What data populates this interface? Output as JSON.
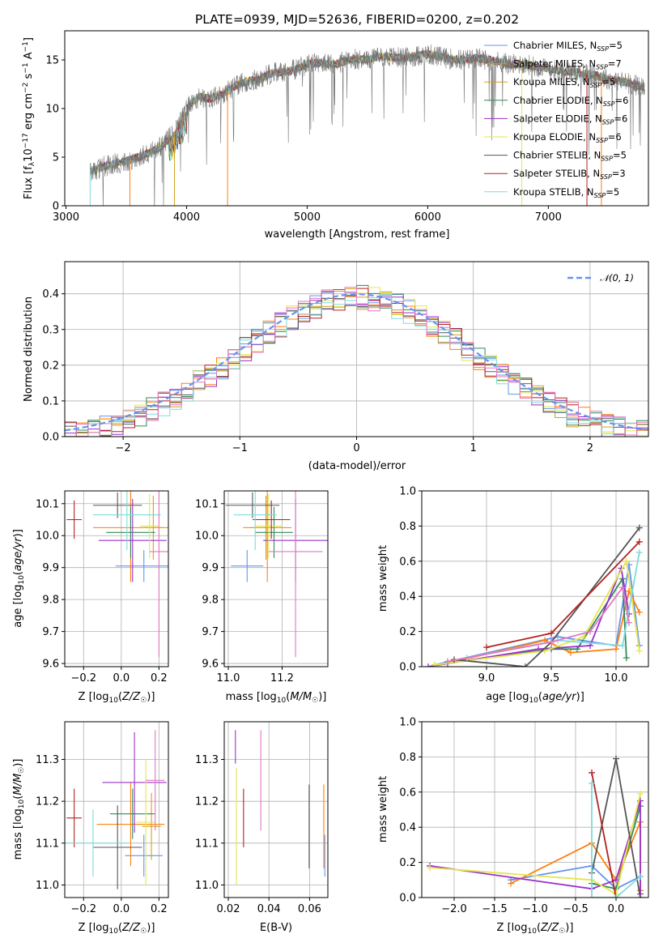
{
  "chart_data": [
    {
      "type": "line",
      "title": "PLATE=0939, MJD=52636, FIBERID=0200, z=0.202",
      "xlabel": "wavelength [Angstrom, rest frame]",
      "ylabel": "Flux [fλ10⁻¹⁷ erg cm⁻² s⁻¹ A⁻¹]",
      "xlim": [
        2990,
        7830
      ],
      "ylim": [
        0,
        18
      ],
      "xticks": [
        "3000",
        "4000",
        "5000",
        "6000",
        "7000"
      ],
      "yticks": [
        "0",
        "5",
        "10",
        "15"
      ],
      "grid": false,
      "legend_position": "top-right",
      "spectrum": {
        "x": [
          3200,
          3300,
          3400,
          3500,
          3600,
          3700,
          3800,
          3900,
          4000,
          4100,
          4200,
          4300,
          4400,
          4500,
          4600,
          4700,
          4800,
          4900,
          5000,
          5100,
          5200,
          5300,
          5400,
          5500,
          5600,
          5700,
          5800,
          5900,
          6000,
          6100,
          6200,
          6300,
          6400,
          6500,
          6600,
          6700,
          6800,
          6900,
          7000,
          7100,
          7200,
          7300,
          7400,
          7500,
          7600,
          7700,
          7800
        ],
        "y": [
          3.5,
          4.0,
          4.3,
          4.6,
          5.0,
          5.5,
          6.2,
          7.5,
          10.0,
          11.2,
          11.0,
          11.5,
          12.3,
          12.8,
          13.0,
          13.6,
          13.8,
          14.0,
          14.6,
          14.7,
          14.5,
          14.8,
          15.1,
          15.0,
          15.4,
          15.3,
          15.2,
          15.4,
          15.6,
          15.3,
          15.1,
          15.0,
          15.2,
          15.0,
          14.8,
          14.5,
          14.6,
          14.3,
          14.1,
          13.9,
          13.8,
          13.6,
          13.4,
          13.0,
          12.8,
          12.5,
          12.2
        ]
      },
      "series": [
        {
          "name": "Chabrier MILES, NSSP=5",
          "color": "#6495ed"
        },
        {
          "name": "Salpeter MILES, NSSP=7",
          "color": "#ff7f0e"
        },
        {
          "name": "Kroupa MILES, NSSP=5",
          "color": "#d4a017"
        },
        {
          "name": "Chabrier ELODIE, NSSP=6",
          "color": "#2e8b57"
        },
        {
          "name": "Salpeter ELODIE, NSSP=6",
          "color": "#9932cc"
        },
        {
          "name": "Kroupa ELODIE, NSSP=6",
          "color": "#e6e64c"
        },
        {
          "name": "Chabrier STELIB, NSSP=5",
          "color": "#555555"
        },
        {
          "name": "Salpeter STELIB, NSSP=3",
          "color": "#b22222"
        },
        {
          "name": "Kroupa STELIB, NSSP=5",
          "color": "#7fdbdb"
        }
      ]
    },
    {
      "type": "line",
      "xlabel": "(data-model)/error",
      "ylabel": "Normed distribution",
      "xlim": [
        -2.5,
        2.5
      ],
      "ylim": [
        0,
        0.49
      ],
      "xticks": [
        "−2",
        "−1",
        "0",
        "1",
        "2"
      ],
      "yticks": [
        "0.0",
        "0.1",
        "0.2",
        "0.3",
        "0.4"
      ],
      "grid": true,
      "legend_position": "top-right",
      "legend": "𝒩(0, 1)",
      "gaussian": {
        "mean": 0,
        "sigma": 1,
        "color": "#6495ed"
      },
      "histogram_bin_width": 0.1
    },
    {
      "type": "scatter",
      "xlabel": "Z [log10(Z/Z☉)]",
      "ylabel": "age  [log10(age/yr)]",
      "xlim": [
        -0.3,
        0.25
      ],
      "ylim": [
        9.59,
        10.14
      ],
      "xticks": [
        "−0.2",
        "0.0",
        "0.2"
      ],
      "yticks": [
        "9.6",
        "9.7",
        "9.8",
        "9.9",
        "10.0",
        "10.1"
      ],
      "grid": true,
      "points": [
        {
          "x": 0.12,
          "y": 9.905,
          "xerr": 0.15,
          "yerr": 0.05,
          "color": "#6495ed"
        },
        {
          "x": 0.05,
          "y": 10.025,
          "xerr": 0.2,
          "yerr": 0.17,
          "color": "#ff7f0e"
        },
        {
          "x": 0.17,
          "y": 10.025,
          "xerr": 0.05,
          "yerr": 0.1,
          "color": "#d4a017"
        },
        {
          "x": 0.05,
          "y": 10.01,
          "xerr": 0.13,
          "yerr": 0.08,
          "color": "#2e8b57"
        },
        {
          "x": 0.06,
          "y": 9.985,
          "xerr": 0.18,
          "yerr": 0.13,
          "color": "#9932cc"
        },
        {
          "x": 0.15,
          "y": 10.03,
          "xerr": 0.05,
          "yerr": 0.1,
          "color": "#e6e64c"
        },
        {
          "x": -0.02,
          "y": 10.095,
          "xerr": 0.13,
          "yerr": 0.04,
          "color": "#555555"
        },
        {
          "x": -0.25,
          "y": 10.05,
          "xerr": 0.04,
          "yerr": 0.06,
          "color": "#b22222"
        },
        {
          "x": 0.03,
          "y": 10.065,
          "xerr": 0.18,
          "yerr": 0.11,
          "color": "#7fdbdb"
        },
        {
          "x": 0.2,
          "y": 9.95,
          "xerr": 0.05,
          "yerr": 0.33,
          "color": "#e377c2"
        }
      ]
    },
    {
      "type": "scatter",
      "xlabel": "mass [log10(M/M☉)]",
      "ylabel": "",
      "xlim": [
        10.985,
        11.37
      ],
      "ylim": [
        9.59,
        10.14
      ],
      "xticks": [
        "11.0",
        "11.2"
      ],
      "yticks": [
        "9.6",
        "9.7",
        "9.8",
        "9.9",
        "10.0",
        "10.1"
      ],
      "grid": true,
      "points": [
        {
          "x": 11.07,
          "y": 9.905,
          "xerr": 0.06,
          "yerr": 0.05,
          "color": "#6495ed"
        },
        {
          "x": 11.145,
          "y": 10.025,
          "xerr": 0.09,
          "yerr": 0.17,
          "color": "#ff7f0e"
        },
        {
          "x": 11.14,
          "y": 10.025,
          "xerr": 0.06,
          "yerr": 0.1,
          "color": "#d4a017"
        },
        {
          "x": 11.17,
          "y": 10.01,
          "xerr": 0.07,
          "yerr": 0.08,
          "color": "#2e8b57"
        },
        {
          "x": 11.25,
          "y": 9.985,
          "xerr": 0.12,
          "yerr": 0.13,
          "color": "#9932cc"
        },
        {
          "x": 11.15,
          "y": 10.03,
          "xerr": 0.05,
          "yerr": 0.1,
          "color": "#e6e64c"
        },
        {
          "x": 11.09,
          "y": 10.095,
          "xerr": 0.1,
          "yerr": 0.04,
          "color": "#555555"
        },
        {
          "x": 11.16,
          "y": 10.05,
          "xerr": 0.07,
          "yerr": 0.06,
          "color": "#b22222"
        },
        {
          "x": 11.1,
          "y": 10.065,
          "xerr": 0.08,
          "yerr": 0.11,
          "color": "#7fdbdb"
        },
        {
          "x": 11.25,
          "y": 9.95,
          "xerr": 0.1,
          "yerr": 0.33,
          "color": "#e377c2"
        }
      ]
    },
    {
      "type": "line",
      "xlabel": "age  [log10(age/yr)]",
      "ylabel": "mass weight",
      "xlim": [
        8.5,
        10.25
      ],
      "ylim": [
        0,
        1
      ],
      "xticks": [
        "9.0",
        "9.5",
        "10.0"
      ],
      "yticks": [
        "0.0",
        "0.2",
        "0.4",
        "0.6",
        "0.8",
        "1.0"
      ],
      "grid": true,
      "series": [
        {
          "name": "Chabrier MILES",
          "color": "#6495ed",
          "x": [
            8.6,
            9.55,
            10.0,
            10.1,
            10.18
          ],
          "y": [
            0.01,
            0.17,
            0.12,
            0.58,
            0.12
          ]
        },
        {
          "name": "Salpeter MILES",
          "color": "#ff7f0e",
          "x": [
            8.7,
            9.45,
            9.65,
            10.0,
            10.1,
            10.18
          ],
          "y": [
            0.02,
            0.15,
            0.08,
            0.1,
            0.43,
            0.31
          ]
        },
        {
          "name": "Chabrier ELODIE",
          "color": "#2e8b57",
          "x": [
            8.7,
            9.5,
            9.7,
            10.05,
            10.08
          ],
          "y": [
            0.02,
            0.1,
            0.1,
            0.5,
            0.05
          ]
        },
        {
          "name": "Salpeter ELODIE",
          "color": "#9932cc",
          "x": [
            8.55,
            9.4,
            9.8,
            10.04,
            10.1
          ],
          "y": [
            0.0,
            0.1,
            0.12,
            0.56,
            0.3
          ]
        },
        {
          "name": "Kroupa ELODIE",
          "color": "#e6e64c",
          "x": [
            8.6,
            9.45,
            9.75,
            10.08,
            10.18
          ],
          "y": [
            0.01,
            0.09,
            0.17,
            0.6,
            0.09
          ]
        },
        {
          "name": "Chabrier STELIB",
          "color": "#555555",
          "x": [
            8.75,
            9.3,
            9.5,
            10.18
          ],
          "y": [
            0.04,
            0.0,
            0.14,
            0.79
          ]
        },
        {
          "name": "Salpeter STELIB",
          "color": "#b22222",
          "x": [
            9.0,
            9.5,
            10.18
          ],
          "y": [
            0.11,
            0.19,
            0.71
          ]
        },
        {
          "name": "Kroupa STELIB",
          "color": "#7fdbdb",
          "x": [
            8.85,
            9.55,
            10.05,
            10.18
          ],
          "y": [
            0.05,
            0.15,
            0.12,
            0.65
          ]
        },
        {
          "name": "Kroupa MILES",
          "color": "#e377c2",
          "x": [
            8.7,
            9.5,
            9.8,
            10.05,
            10.1
          ],
          "y": [
            0.03,
            0.14,
            0.2,
            0.45,
            0.25
          ]
        }
      ]
    },
    {
      "type": "scatter",
      "xlabel": "Z [log10(Z/Z☉)]",
      "ylabel": "mass [log10(M/M☉)]",
      "xlim": [
        -0.3,
        0.25
      ],
      "ylim": [
        10.97,
        11.39
      ],
      "xticks": [
        "−0.2",
        "0.0",
        "0.2"
      ],
      "yticks": [
        "11.0",
        "11.1",
        "11.2",
        "11.3"
      ],
      "grid": true,
      "points": [
        {
          "x": 0.12,
          "y": 11.07,
          "xerr": 0.1,
          "yerr": 0.05,
          "color": "#6495ed"
        },
        {
          "x": 0.05,
          "y": 11.145,
          "xerr": 0.18,
          "yerr": 0.1,
          "color": "#ff7f0e"
        },
        {
          "x": 0.16,
          "y": 11.14,
          "xerr": 0.05,
          "yerr": 0.08,
          "color": "#d4a017"
        },
        {
          "x": 0.06,
          "y": 11.17,
          "xerr": 0.12,
          "yerr": 0.06,
          "color": "#2e8b57"
        },
        {
          "x": 0.07,
          "y": 11.245,
          "xerr": 0.17,
          "yerr": 0.12,
          "color": "#9932cc"
        },
        {
          "x": 0.13,
          "y": 11.15,
          "xerr": 0.05,
          "yerr": 0.15,
          "color": "#e6e64c"
        },
        {
          "x": -0.02,
          "y": 11.09,
          "xerr": 0.13,
          "yerr": 0.1,
          "color": "#555555"
        },
        {
          "x": -0.25,
          "y": 11.16,
          "xerr": 0.04,
          "yerr": 0.07,
          "color": "#b22222"
        },
        {
          "x": -0.15,
          "y": 11.1,
          "xerr": 0.18,
          "yerr": 0.08,
          "color": "#7fdbdb"
        },
        {
          "x": 0.18,
          "y": 11.25,
          "xerr": 0.05,
          "yerr": 0.12,
          "color": "#e377c2"
        }
      ]
    },
    {
      "type": "scatter",
      "xlabel": "E(B-V)",
      "ylabel": "",
      "xlim": [
        0.018,
        0.069
      ],
      "ylim": [
        10.97,
        11.39
      ],
      "xticks": [
        "0.02",
        "0.04",
        "0.06"
      ],
      "yticks": [
        "11.0",
        "11.1",
        "11.2",
        "11.3"
      ],
      "grid": true,
      "points": [
        {
          "x": 0.0235,
          "y": 11.33,
          "yerr": 0.04,
          "color": "#9932cc"
        },
        {
          "x": 0.024,
          "y": 11.14,
          "yerr": 0.14,
          "color": "#e6e64c"
        },
        {
          "x": 0.0275,
          "y": 11.16,
          "yerr": 0.07,
          "color": "#b22222"
        },
        {
          "x": 0.036,
          "y": 11.25,
          "yerr": 0.12,
          "color": "#e377c2"
        },
        {
          "x": 0.0598,
          "y": 11.14,
          "yerr": 0.1,
          "color": "#555555"
        },
        {
          "x": 0.067,
          "y": 11.14,
          "yerr": 0.1,
          "color": "#ff7f0e"
        },
        {
          "x": 0.0675,
          "y": 11.07,
          "yerr": 0.05,
          "color": "#6495ed"
        }
      ]
    },
    {
      "type": "line",
      "xlabel": "Z [log10(Z/Z☉)]",
      "ylabel": "mass weight",
      "xlim": [
        -2.4,
        0.4
      ],
      "ylim": [
        0,
        1
      ],
      "xticks": [
        "−2.0",
        "−1.5",
        "−1.0",
        "−0.5",
        "0.0"
      ],
      "yticks": [
        "0.0",
        "0.2",
        "0.4",
        "0.6",
        "0.8",
        "1.0"
      ],
      "grid": true,
      "series": [
        {
          "name": "Chabrier MILES",
          "color": "#6495ed",
          "x": [
            -1.3,
            -0.3,
            0.0,
            0.3
          ],
          "y": [
            0.1,
            0.18,
            0.05,
            0.12
          ]
        },
        {
          "name": "Salpeter MILES",
          "color": "#ff7f0e",
          "x": [
            -1.3,
            -0.3,
            0.0,
            0.3,
            0.3
          ],
          "y": [
            0.08,
            0.31,
            0.1,
            0.43,
            0.04
          ]
        },
        {
          "name": "Chabrier ELODIE",
          "color": "#2e8b57",
          "x": [
            -0.3,
            0.0,
            0.3
          ],
          "y": [
            0.08,
            0.05,
            0.52
          ]
        },
        {
          "name": "Salpeter ELODIE",
          "color": "#9932cc",
          "x": [
            -2.3,
            -0.3,
            0.0,
            0.3,
            0.3
          ],
          "y": [
            0.18,
            0.05,
            0.1,
            0.55,
            0.02
          ]
        },
        {
          "name": "Kroupa ELODIE",
          "color": "#e6e64c",
          "x": [
            -2.3,
            -0.3,
            0.0,
            0.3
          ],
          "y": [
            0.17,
            0.1,
            0.02,
            0.59
          ]
        },
        {
          "name": "Chabrier STELIB",
          "color": "#555555",
          "x": [
            -0.3,
            0.0,
            0.3
          ],
          "y": [
            0.14,
            0.79,
            0.0
          ]
        },
        {
          "name": "Salpeter STELIB",
          "color": "#b22222",
          "x": [
            -0.3,
            0.0
          ],
          "y": [
            0.71,
            0.0
          ]
        },
        {
          "name": "Kroupa STELIB",
          "color": "#7fdbdb",
          "x": [
            -0.3,
            -0.3,
            0.0,
            0.3
          ],
          "y": [
            0.65,
            0.0,
            0.0,
            0.12
          ]
        }
      ]
    }
  ]
}
